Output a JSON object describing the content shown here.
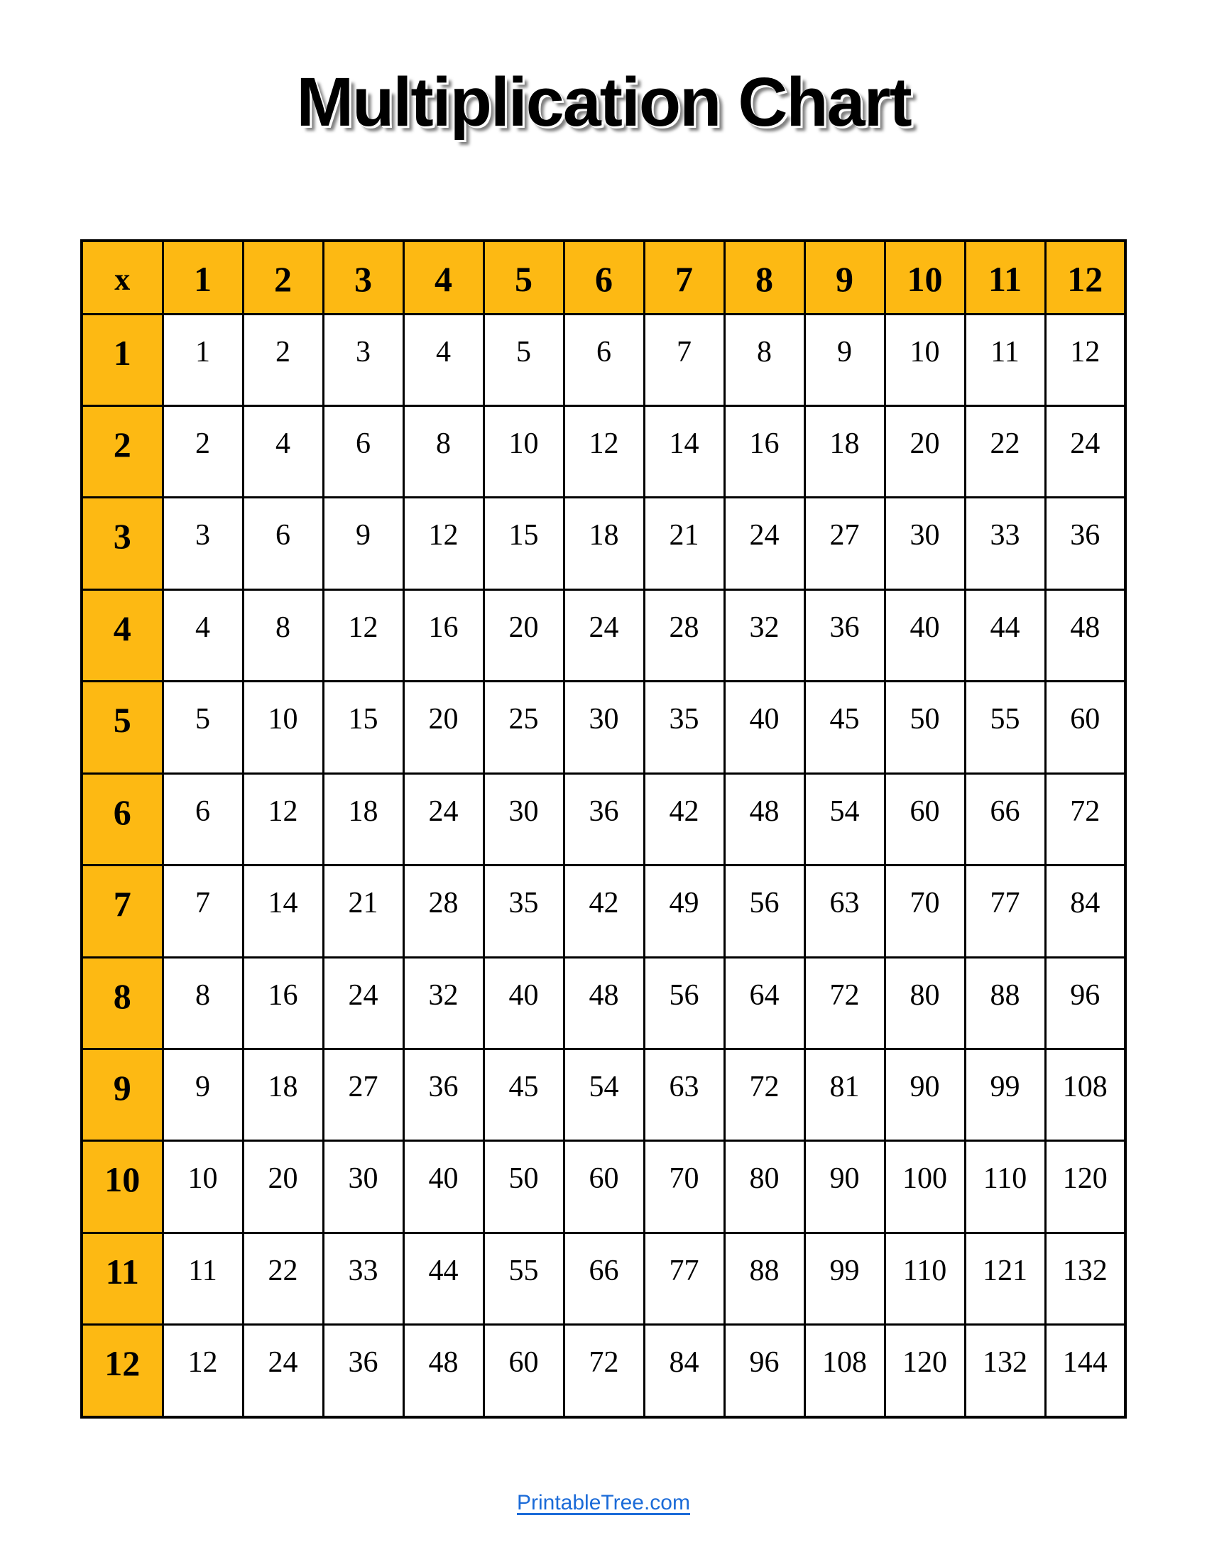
{
  "page": {
    "title": "Multiplication Chart"
  },
  "colors": {
    "accent": "#FDB913",
    "border": "#000000",
    "link": "#1B6BD8"
  },
  "footer": {
    "link_label": "PrintableTree.com"
  },
  "table": {
    "corner_label": "x",
    "column_headers": [
      "1",
      "2",
      "3",
      "4",
      "5",
      "6",
      "7",
      "8",
      "9",
      "10",
      "11",
      "12"
    ],
    "row_headers": [
      "1",
      "2",
      "3",
      "4",
      "5",
      "6",
      "7",
      "8",
      "9",
      "10",
      "11",
      "12"
    ],
    "values": [
      [
        1,
        2,
        3,
        4,
        5,
        6,
        7,
        8,
        9,
        10,
        11,
        12
      ],
      [
        2,
        4,
        6,
        8,
        10,
        12,
        14,
        16,
        18,
        20,
        22,
        24
      ],
      [
        3,
        6,
        9,
        12,
        15,
        18,
        21,
        24,
        27,
        30,
        33,
        36
      ],
      [
        4,
        8,
        12,
        16,
        20,
        24,
        28,
        32,
        36,
        40,
        44,
        48
      ],
      [
        5,
        10,
        15,
        20,
        25,
        30,
        35,
        40,
        45,
        50,
        55,
        60
      ],
      [
        6,
        12,
        18,
        24,
        30,
        36,
        42,
        48,
        54,
        60,
        66,
        72
      ],
      [
        7,
        14,
        21,
        28,
        35,
        42,
        49,
        56,
        63,
        70,
        77,
        84
      ],
      [
        8,
        16,
        24,
        32,
        40,
        48,
        56,
        64,
        72,
        80,
        88,
        96
      ],
      [
        9,
        18,
        27,
        36,
        45,
        54,
        63,
        72,
        81,
        90,
        99,
        108
      ],
      [
        10,
        20,
        30,
        40,
        50,
        60,
        70,
        80,
        90,
        100,
        110,
        120
      ],
      [
        11,
        22,
        33,
        44,
        55,
        66,
        77,
        88,
        99,
        110,
        121,
        132
      ],
      [
        12,
        24,
        36,
        48,
        60,
        72,
        84,
        96,
        108,
        120,
        132,
        144
      ]
    ]
  }
}
